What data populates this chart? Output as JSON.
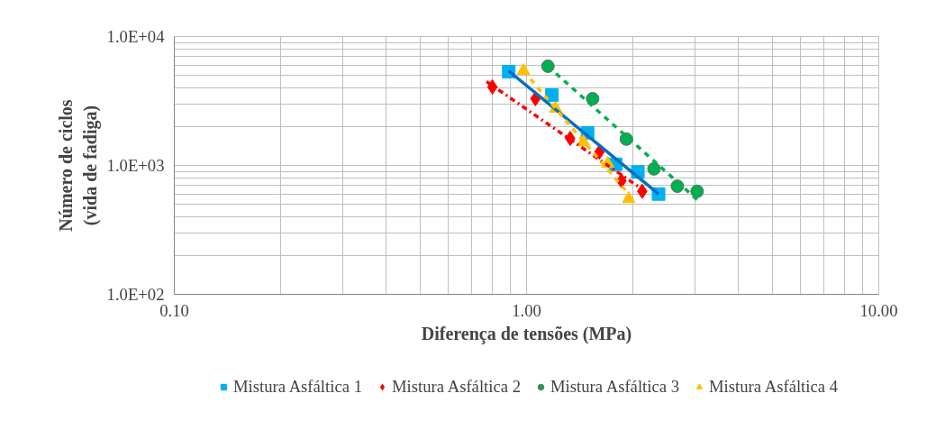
{
  "chart_data": {
    "type": "scatter",
    "xlabel": "Diferença de tensões (MPa)",
    "ylabel": "Número de ciclos\n(vida de fadiga)",
    "log": "xy",
    "grid": true,
    "legend": "bottom",
    "xlim": [
      0.1,
      10
    ],
    "ylim": [
      100,
      10000
    ],
    "xticks": [
      {
        "value": 0.1,
        "label": "0.10"
      },
      {
        "value": 0.2,
        "label": null
      },
      {
        "value": 0.3,
        "label": null
      },
      {
        "value": 0.4,
        "label": null
      },
      {
        "value": 0.5,
        "label": null
      },
      {
        "value": 0.6,
        "label": null
      },
      {
        "value": 0.7,
        "label": null
      },
      {
        "value": 0.8,
        "label": null
      },
      {
        "value": 0.9,
        "label": null
      },
      {
        "value": 1,
        "label": "1.00"
      },
      {
        "value": 2,
        "label": null
      },
      {
        "value": 3,
        "label": null
      },
      {
        "value": 4,
        "label": null
      },
      {
        "value": 5,
        "label": null
      },
      {
        "value": 6,
        "label": null
      },
      {
        "value": 7,
        "label": null
      },
      {
        "value": 8,
        "label": null
      },
      {
        "value": 9,
        "label": null
      },
      {
        "value": 10,
        "label": "10.00"
      }
    ],
    "yticks": [
      {
        "value": 100,
        "label": "1.0E+02"
      },
      {
        "value": 200,
        "label": null
      },
      {
        "value": 300,
        "label": null
      },
      {
        "value": 400,
        "label": null
      },
      {
        "value": 500,
        "label": null
      },
      {
        "value": 600,
        "label": null
      },
      {
        "value": 700,
        "label": null
      },
      {
        "value": 800,
        "label": null
      },
      {
        "value": 900,
        "label": null
      },
      {
        "value": 1000,
        "label": "1.0E+03"
      },
      {
        "value": 2000,
        "label": null
      },
      {
        "value": 3000,
        "label": null
      },
      {
        "value": 4000,
        "label": null
      },
      {
        "value": 5000,
        "label": null
      },
      {
        "value": 6000,
        "label": null
      },
      {
        "value": 7000,
        "label": null
      },
      {
        "value": 8000,
        "label": null
      },
      {
        "value": 9000,
        "label": null
      },
      {
        "value": 10000,
        "label": "1.0E+04"
      }
    ],
    "series": [
      {
        "name": "Mistura Asfáltica 1",
        "marker": "square",
        "color": "#00b0f0",
        "x": [
          0.89,
          1.18,
          1.49,
          1.79,
          2.07,
          2.37
        ],
        "values": [
          5340,
          3510,
          1790,
          1020,
          890,
          600
        ]
      },
      {
        "name": "Mistura Asfáltica 2",
        "marker": "diamond",
        "color": "#ff0000",
        "x": [
          0.8,
          1.06,
          1.33,
          1.61,
          1.86,
          2.13
        ],
        "values": [
          4060,
          3290,
          1620,
          1270,
          760,
          630
        ]
      },
      {
        "name": "Mistura Asfáltica 3",
        "marker": "circle",
        "color": "#00b050",
        "x": [
          1.15,
          1.54,
          1.92,
          2.3,
          2.68,
          3.05
        ],
        "values": [
          5880,
          3290,
          1600,
          940,
          690,
          630
        ]
      },
      {
        "name": "Mistura Asfáltica 4",
        "marker": "triangle",
        "color": "#ffc000",
        "x": [
          0.98,
          1.21,
          1.45,
          1.7,
          1.95
        ],
        "values": [
          5420,
          2760,
          1520,
          1030,
          550
        ]
      },
      {
        "type": "line",
        "line_style": "solid",
        "color": "#0070c0",
        "x": [
          0.89,
          2.37
        ],
        "values": [
          5400,
          600
        ]
      },
      {
        "type": "line",
        "line_style": "dashdot",
        "color": "#ff0000",
        "x": [
          0.77,
          2.19
        ],
        "values": [
          4470,
          620
        ]
      },
      {
        "type": "line",
        "line_style": "dashed",
        "color": "#00b050",
        "x": [
          1.15,
          3.08
        ],
        "values": [
          5880,
          530
        ]
      },
      {
        "type": "line",
        "line_style": "dashed",
        "color": "#ffc000",
        "x": [
          0.98,
          1.95
        ],
        "values": [
          5400,
          600
        ]
      }
    ]
  }
}
